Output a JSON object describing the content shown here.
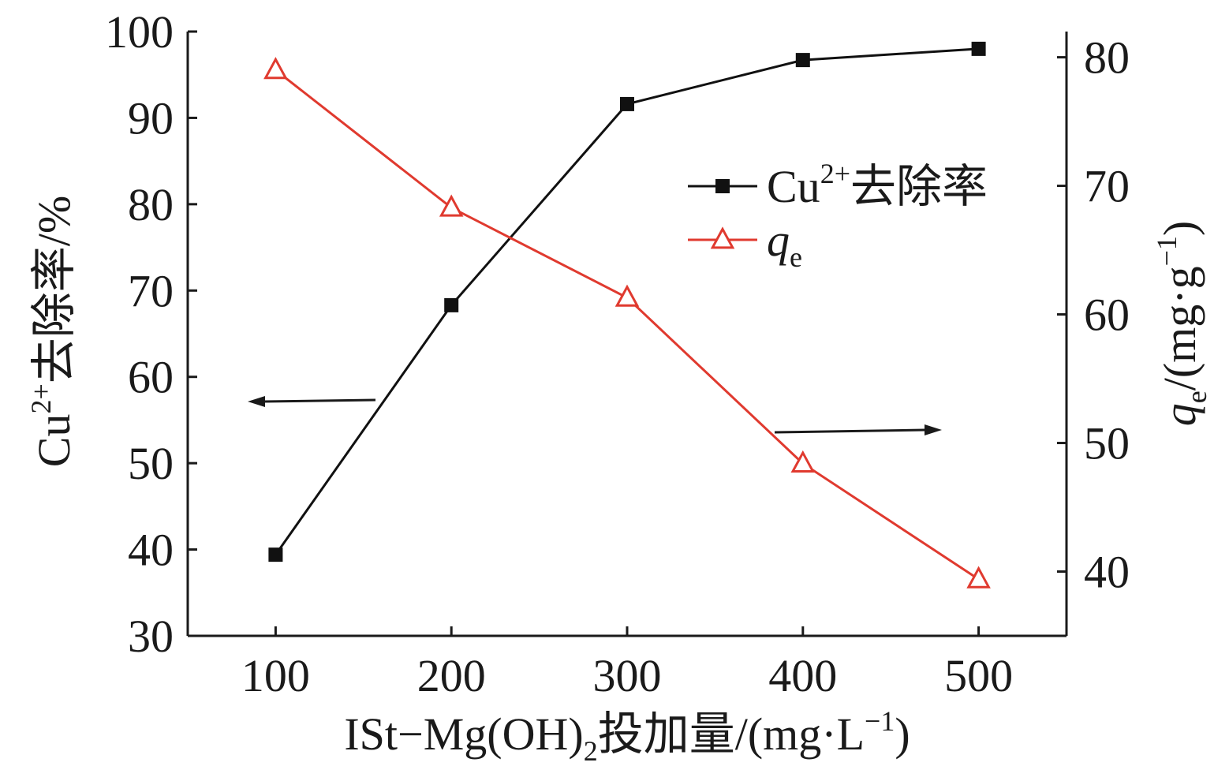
{
  "chart_data": {
    "type": "line",
    "x": [
      100,
      200,
      300,
      400,
      500
    ],
    "xlim": [
      50,
      550
    ],
    "ylim_left": [
      30,
      100
    ],
    "ylim_right": [
      35,
      82
    ],
    "x_ticks": [
      100,
      200,
      300,
      400,
      500
    ],
    "y_left_ticks": [
      30,
      40,
      50,
      60,
      70,
      80,
      90,
      100
    ],
    "y_right_ticks": [
      40,
      50,
      60,
      70,
      80
    ],
    "xlabel": {
      "main": "ISt−Mg(OH)",
      "sub": "2",
      "rest": "投加量/(mg·L",
      "sup": "−1",
      "end": ")"
    },
    "ylabel_left": {
      "main": "Cu",
      "sup": "2+",
      "rest": "去除率/%"
    },
    "ylabel_right": {
      "q": "q",
      "sub": "e",
      "rest": "/(mg·g",
      "sup": "−1",
      "end": ")"
    },
    "series": [
      {
        "legend_main": "Cu",
        "legend_sup": "2+",
        "legend_rest": "去除率",
        "axis": "left",
        "marker": "square",
        "color": "#111111",
        "values": [
          39.4,
          68.3,
          91.6,
          96.7,
          98.0
        ]
      },
      {
        "legend_main": "q",
        "legend_sub": "e",
        "axis": "right",
        "marker": "triangle-open",
        "color": "#e03a2f",
        "values": [
          79.0,
          68.3,
          61.3,
          48.4,
          39.4
        ]
      }
    ],
    "grid": false,
    "legend_position": "upper-right-center"
  }
}
